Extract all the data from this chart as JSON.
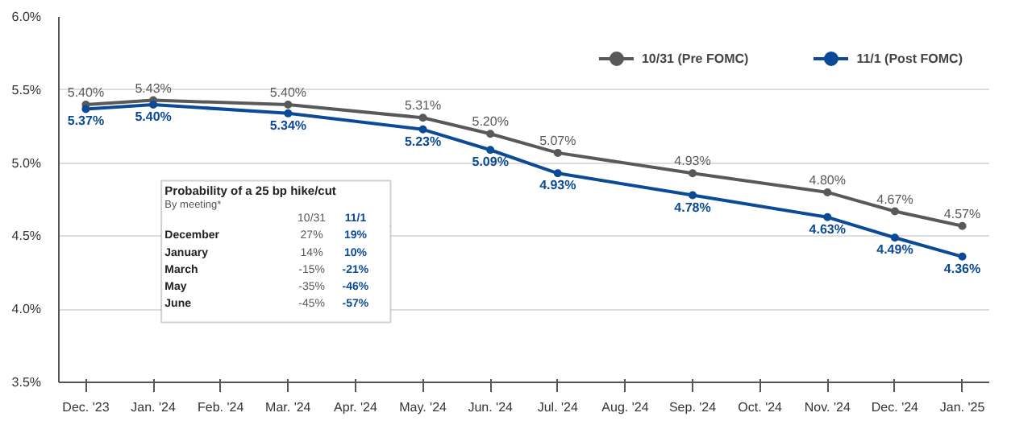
{
  "chart_data": {
    "type": "line",
    "categories": [
      "Dec. '23",
      "Jan. '24",
      "Feb. '24",
      "Mar. '24",
      "Apr. '24",
      "May. '24",
      "Jun. '24",
      "Jul. '24",
      "Aug. '24",
      "Sep. '24",
      "Oct. '24",
      "Nov. '24",
      "Dec. '24",
      "Jan. '25"
    ],
    "ylim": [
      3.5,
      6.0
    ],
    "yticks": [
      {
        "value": 3.5,
        "label": "3.5%"
      },
      {
        "value": 4.0,
        "label": "4.0%"
      },
      {
        "value": 4.5,
        "label": "4.5%"
      },
      {
        "value": 5.0,
        "label": "5.0%"
      },
      {
        "value": 5.5,
        "label": "5.5%"
      },
      {
        "value": 6.0,
        "label": "6.0%"
      }
    ],
    "series": [
      {
        "name": "10/31 (Pre FOMC)",
        "color": "#595959",
        "values": [
          5.4,
          5.43,
          null,
          5.4,
          null,
          5.31,
          5.2,
          5.07,
          null,
          4.93,
          null,
          4.8,
          4.67,
          4.57
        ],
        "value_labels": [
          "5.40%",
          "5.43%",
          null,
          "5.40%",
          null,
          "5.31%",
          "5.20%",
          "5.07%",
          null,
          "4.93%",
          null,
          "4.80%",
          "4.67%",
          "4.57%"
        ]
      },
      {
        "name": "11/1 (Post FOMC)",
        "color": "#0b4a97",
        "values": [
          5.37,
          5.4,
          null,
          5.34,
          null,
          5.23,
          5.09,
          4.93,
          null,
          4.78,
          null,
          4.63,
          4.49,
          4.36
        ],
        "value_labels": [
          "5.37%",
          "5.40%",
          null,
          "5.34%",
          null,
          "5.23%",
          "5.09%",
          "4.93%",
          null,
          "4.78%",
          null,
          "4.63%",
          "4.49%",
          "4.36%"
        ]
      }
    ],
    "annotations": [
      "Probability of a 25 bp hike/cut",
      "By meeting*",
      "10/31",
      "11/1",
      "December",
      "27%",
      "19%",
      "January",
      "14%",
      "10%",
      "March",
      "-15%",
      "-21%",
      "May",
      "-35%",
      "-46%",
      "June",
      "-45%",
      "-57%"
    ],
    "grid": "y",
    "legend": "top",
    "marker": "circle",
    "line_style": "solid"
  }
}
